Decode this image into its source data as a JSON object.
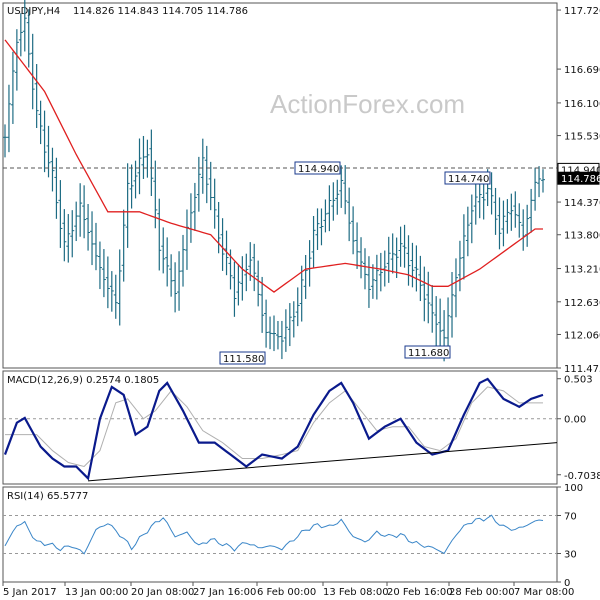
{
  "header": {
    "symbol": "USDJPY,H4",
    "ohlc": "114.826 114.843 114.705 114.786"
  },
  "watermark": "ActionForex.com",
  "colors": {
    "price_bars": "#1d6b83",
    "ma": "#e02020",
    "macd": "#0a1a8c",
    "signal": "#b0b0b0",
    "rsi": "#3a86c8",
    "grid": "#999999"
  },
  "chart_data": [
    {
      "type": "bar",
      "panel": "price",
      "title": "USDJPY,H4",
      "ylim": [
        111.475,
        117.843
      ],
      "ticks": [
        "117.720",
        "116.690",
        "116.100",
        "115.530",
        "114.940",
        "114.786",
        "114.370",
        "113.800",
        "113.210",
        "112.630",
        "112.060",
        "111.475"
      ],
      "current_price": 114.786,
      "dashed_level": 114.94,
      "annotations": [
        {
          "text": "114.940",
          "value": 114.94
        },
        {
          "text": "114.740",
          "value": 114.74
        },
        {
          "text": "111.580",
          "value": 111.58
        },
        {
          "text": "111.680",
          "value": 111.68
        }
      ],
      "x_labels": [
        "5 Jan 2017",
        "13 Jan 00:00",
        "20 Jan 08:00",
        "27 Jan 16:00",
        "6 Feb 00:00",
        "13 Feb 08:00",
        "20 Feb 16:00",
        "28 Feb 00:00",
        "7 Mar 08:00"
      ],
      "anchors": {
        "close": [
          [
            0,
            115.5
          ],
          [
            3,
            117.2
          ],
          [
            5,
            117.5
          ],
          [
            8,
            115.9
          ],
          [
            12,
            114.8
          ],
          [
            15,
            113.6
          ],
          [
            19,
            114.3
          ],
          [
            24,
            113.2
          ],
          [
            28,
            112.6
          ],
          [
            31,
            114.6
          ],
          [
            36,
            115.3
          ],
          [
            39,
            113.6
          ],
          [
            43,
            112.8
          ],
          [
            46,
            113.9
          ],
          [
            50,
            115.1
          ],
          [
            54,
            113.8
          ],
          [
            58,
            112.8
          ],
          [
            62,
            113.4
          ],
          [
            66,
            112.1
          ],
          [
            70,
            112.0
          ],
          [
            74,
            112.6
          ],
          [
            78,
            113.8
          ],
          [
            82,
            114.3
          ],
          [
            85,
            114.7
          ],
          [
            88,
            113.7
          ],
          [
            92,
            112.9
          ],
          [
            96,
            113.3
          ],
          [
            100,
            113.6
          ],
          [
            104,
            113.1
          ],
          [
            108,
            112.4
          ],
          [
            111,
            112.0
          ],
          [
            114,
            113.1
          ],
          [
            118,
            114.3
          ],
          [
            122,
            114.6
          ],
          [
            125,
            113.9
          ],
          [
            128,
            114.3
          ],
          [
            131,
            113.8
          ],
          [
            134,
            114.7
          ],
          [
            136,
            114.8
          ]
        ],
        "ma": [
          [
            0,
            117.2
          ],
          [
            10,
            116.3
          ],
          [
            18,
            115.2
          ],
          [
            26,
            114.2
          ],
          [
            34,
            114.2
          ],
          [
            42,
            114.0
          ],
          [
            52,
            113.8
          ],
          [
            60,
            113.2
          ],
          [
            68,
            112.8
          ],
          [
            76,
            113.2
          ],
          [
            86,
            113.3
          ],
          [
            95,
            113.2
          ],
          [
            102,
            113.1
          ],
          [
            108,
            112.9
          ],
          [
            112,
            112.9
          ],
          [
            120,
            113.2
          ],
          [
            128,
            113.6
          ],
          [
            134,
            113.9
          ]
        ],
        "range": [
          [
            0,
            0.5
          ],
          [
            30,
            0.55
          ],
          [
            60,
            0.45
          ],
          [
            90,
            0.45
          ],
          [
            110,
            0.6
          ],
          [
            136,
            0.35
          ]
        ]
      }
    },
    {
      "type": "line",
      "panel": "macd",
      "title": "MACD(12,26,9) 0.2574 0.1805",
      "macd_value": 0.2574,
      "signal_value": 0.1805,
      "ylim": [
        -0.82,
        0.6
      ],
      "ticks": [
        "0.503",
        "0.00",
        "-0.7038"
      ],
      "series": [
        {
          "anchors": [
            [
              0,
              -0.45
            ],
            [
              3,
              -0.05
            ],
            [
              5,
              0.01
            ],
            [
              9,
              -0.35
            ],
            [
              12,
              -0.5
            ],
            [
              15,
              -0.6
            ],
            [
              18,
              -0.6
            ],
            [
              21,
              -0.75
            ],
            [
              24,
              0.0
            ],
            [
              27,
              0.4
            ],
            [
              30,
              0.3
            ],
            [
              33,
              -0.2
            ],
            [
              36,
              -0.1
            ],
            [
              39,
              0.35
            ],
            [
              41,
              0.45
            ],
            [
              45,
              0.1
            ],
            [
              49,
              -0.3
            ],
            [
              53,
              -0.3
            ],
            [
              57,
              -0.45
            ],
            [
              61,
              -0.6
            ],
            [
              65,
              -0.45
            ],
            [
              70,
              -0.5
            ],
            [
              74,
              -0.35
            ],
            [
              78,
              0.05
            ],
            [
              82,
              0.35
            ],
            [
              85,
              0.45
            ],
            [
              88,
              0.2
            ],
            [
              92,
              -0.25
            ],
            [
              96,
              -0.1
            ],
            [
              100,
              0.0
            ],
            [
              104,
              -0.3
            ],
            [
              108,
              -0.45
            ],
            [
              112,
              -0.4
            ],
            [
              116,
              0.05
            ],
            [
              120,
              0.45
            ],
            [
              122,
              0.5
            ],
            [
              126,
              0.25
            ],
            [
              130,
              0.15
            ],
            [
              133,
              0.25
            ],
            [
              136,
              0.3
            ]
          ]
        },
        {
          "anchors": [
            [
              0,
              -0.2
            ],
            [
              4,
              -0.2
            ],
            [
              8,
              -0.2
            ],
            [
              12,
              -0.4
            ],
            [
              16,
              -0.55
            ],
            [
              20,
              -0.6
            ],
            [
              24,
              -0.4
            ],
            [
              28,
              0.2
            ],
            [
              31,
              0.25
            ],
            [
              35,
              0.0
            ],
            [
              38,
              0.1
            ],
            [
              42,
              0.35
            ],
            [
              46,
              0.15
            ],
            [
              50,
              -0.15
            ],
            [
              55,
              -0.3
            ],
            [
              60,
              -0.5
            ],
            [
              65,
              -0.5
            ],
            [
              70,
              -0.45
            ],
            [
              74,
              -0.4
            ],
            [
              78,
              -0.05
            ],
            [
              82,
              0.2
            ],
            [
              86,
              0.35
            ],
            [
              90,
              0.1
            ],
            [
              94,
              -0.15
            ],
            [
              98,
              -0.1
            ],
            [
              102,
              -0.1
            ],
            [
              106,
              -0.35
            ],
            [
              110,
              -0.4
            ],
            [
              114,
              -0.25
            ],
            [
              118,
              0.2
            ],
            [
              122,
              0.4
            ],
            [
              126,
              0.35
            ],
            [
              130,
              0.2
            ],
            [
              134,
              0.2
            ],
            [
              136,
              0.2
            ]
          ]
        }
      ],
      "trendline": [
        [
          21,
          -0.78
        ],
        [
          136,
          -0.3
        ]
      ]
    },
    {
      "type": "line",
      "panel": "rsi",
      "title": "RSI(14) 65.5777",
      "rsi_value": 65.5777,
      "ylim": [
        0,
        100
      ],
      "ticks": [
        "100",
        "70",
        "30",
        "0"
      ],
      "levels": [
        70,
        30
      ],
      "series": [
        {
          "anchors": [
            [
              0,
              38
            ],
            [
              3,
              60
            ],
            [
              5,
              62
            ],
            [
              8,
              42
            ],
            [
              11,
              40
            ],
            [
              14,
              35
            ],
            [
              17,
              38
            ],
            [
              20,
              30
            ],
            [
              23,
              55
            ],
            [
              26,
              62
            ],
            [
              29,
              50
            ],
            [
              32,
              36
            ],
            [
              35,
              50
            ],
            [
              38,
              62
            ],
            [
              40,
              68
            ],
            [
              43,
              48
            ],
            [
              46,
              52
            ],
            [
              49,
              38
            ],
            [
              52,
              45
            ],
            [
              55,
              40
            ],
            [
              58,
              35
            ],
            [
              61,
              42
            ],
            [
              64,
              36
            ],
            [
              67,
              38
            ],
            [
              70,
              35
            ],
            [
              73,
              45
            ],
            [
              76,
              55
            ],
            [
              79,
              60
            ],
            [
              82,
              58
            ],
            [
              85,
              65
            ],
            [
              88,
              48
            ],
            [
              91,
              42
            ],
            [
              94,
              52
            ],
            [
              97,
              48
            ],
            [
              100,
              50
            ],
            [
              103,
              42
            ],
            [
              106,
              38
            ],
            [
              109,
              35
            ],
            [
              111,
              30
            ],
            [
              114,
              50
            ],
            [
              117,
              62
            ],
            [
              120,
              66
            ],
            [
              123,
              68
            ],
            [
              126,
              58
            ],
            [
              129,
              55
            ],
            [
              132,
              60
            ],
            [
              134,
              64
            ],
            [
              136,
              65.6
            ]
          ]
        }
      ]
    }
  ]
}
